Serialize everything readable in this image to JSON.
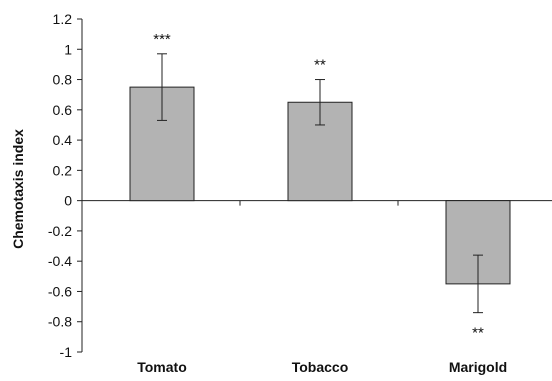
{
  "chart_data": {
    "type": "bar",
    "categories": [
      "Tomato",
      "Tobacco",
      "Marigold"
    ],
    "values": [
      0.75,
      0.65,
      -0.55
    ],
    "error": [
      0.22,
      0.15,
      0.19
    ],
    "significance": [
      "***",
      "**",
      "**"
    ],
    "xlabel": "",
    "ylabel": "Chemotaxis index",
    "ylim": [
      -1,
      1.2
    ],
    "yticks": [
      1.2,
      1,
      0.8,
      0.6,
      0.4,
      0.2,
      0,
      -0.2,
      -0.4,
      -0.6,
      -0.8,
      -1
    ],
    "ytick_labels": [
      "1.2",
      "1",
      "0.8",
      "0.6",
      "0.4",
      "0.2",
      "0",
      "-0.2",
      "-0.4",
      "-0.6",
      "-0.8",
      "-1"
    ],
    "grid": false,
    "bar_color": "#b3b3b3",
    "bar_edge_color": "#222222"
  }
}
